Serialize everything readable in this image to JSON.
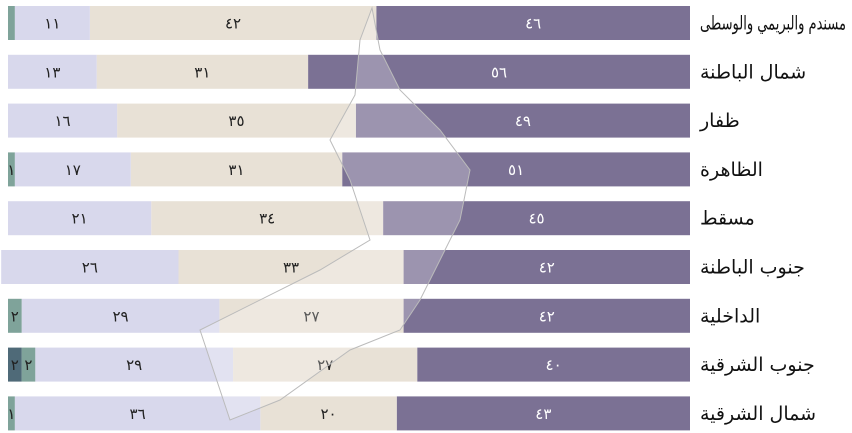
{
  "chart_data": {
    "type": "stacked-bar-horizontal",
    "categories": [
      "مسندم والبريمي والوسطى",
      "شمال الباطنة",
      "ظفار",
      "الظاهرة",
      "مسقط",
      "جنوب الباطنة",
      "الداخلية",
      "جنوب الشرقية",
      "شمال الشرقية"
    ],
    "xlim": [
      0,
      100
    ],
    "series": [
      {
        "color": "#7b7194",
        "values": [
          46,
          56,
          49,
          51,
          45,
          42,
          42,
          40,
          43
        ],
        "value_labels": [
          "٤٦",
          "٥٦",
          "٤٩",
          "٥١",
          "٤٥",
          "٤٢",
          "٤٢",
          "٤٠",
          "٤٣"
        ]
      },
      {
        "color": "#e8e1d6",
        "values": [
          42,
          31,
          35,
          31,
          34,
          33,
          27,
          27,
          20
        ],
        "value_labels": [
          "٤٢",
          "٣١",
          "٣٥",
          "٣١",
          "٣٤",
          "٣٣",
          "٢٧",
          "٢٧",
          "٢٠"
        ]
      },
      {
        "color": "#d8d8ec",
        "values": [
          11,
          13,
          16,
          17,
          21,
          26,
          29,
          29,
          36
        ],
        "value_labels": [
          "١١",
          "١٣",
          "١٦",
          "١٧",
          "٢١",
          "٢٦",
          "٢٩",
          "٢٩",
          "٣٦"
        ]
      },
      {
        "color": "#7fa39a",
        "values": [
          1,
          null,
          null,
          1,
          null,
          null,
          2,
          2,
          1
        ],
        "value_labels": [
          null,
          null,
          null,
          "١",
          null,
          null,
          "٢",
          "٢",
          "١"
        ]
      },
      {
        "color": "#4f6a78",
        "values": [
          null,
          null,
          null,
          null,
          null,
          null,
          null,
          2,
          null
        ],
        "value_labels": [
          null,
          null,
          null,
          null,
          null,
          null,
          null,
          "٢",
          null
        ]
      }
    ]
  }
}
